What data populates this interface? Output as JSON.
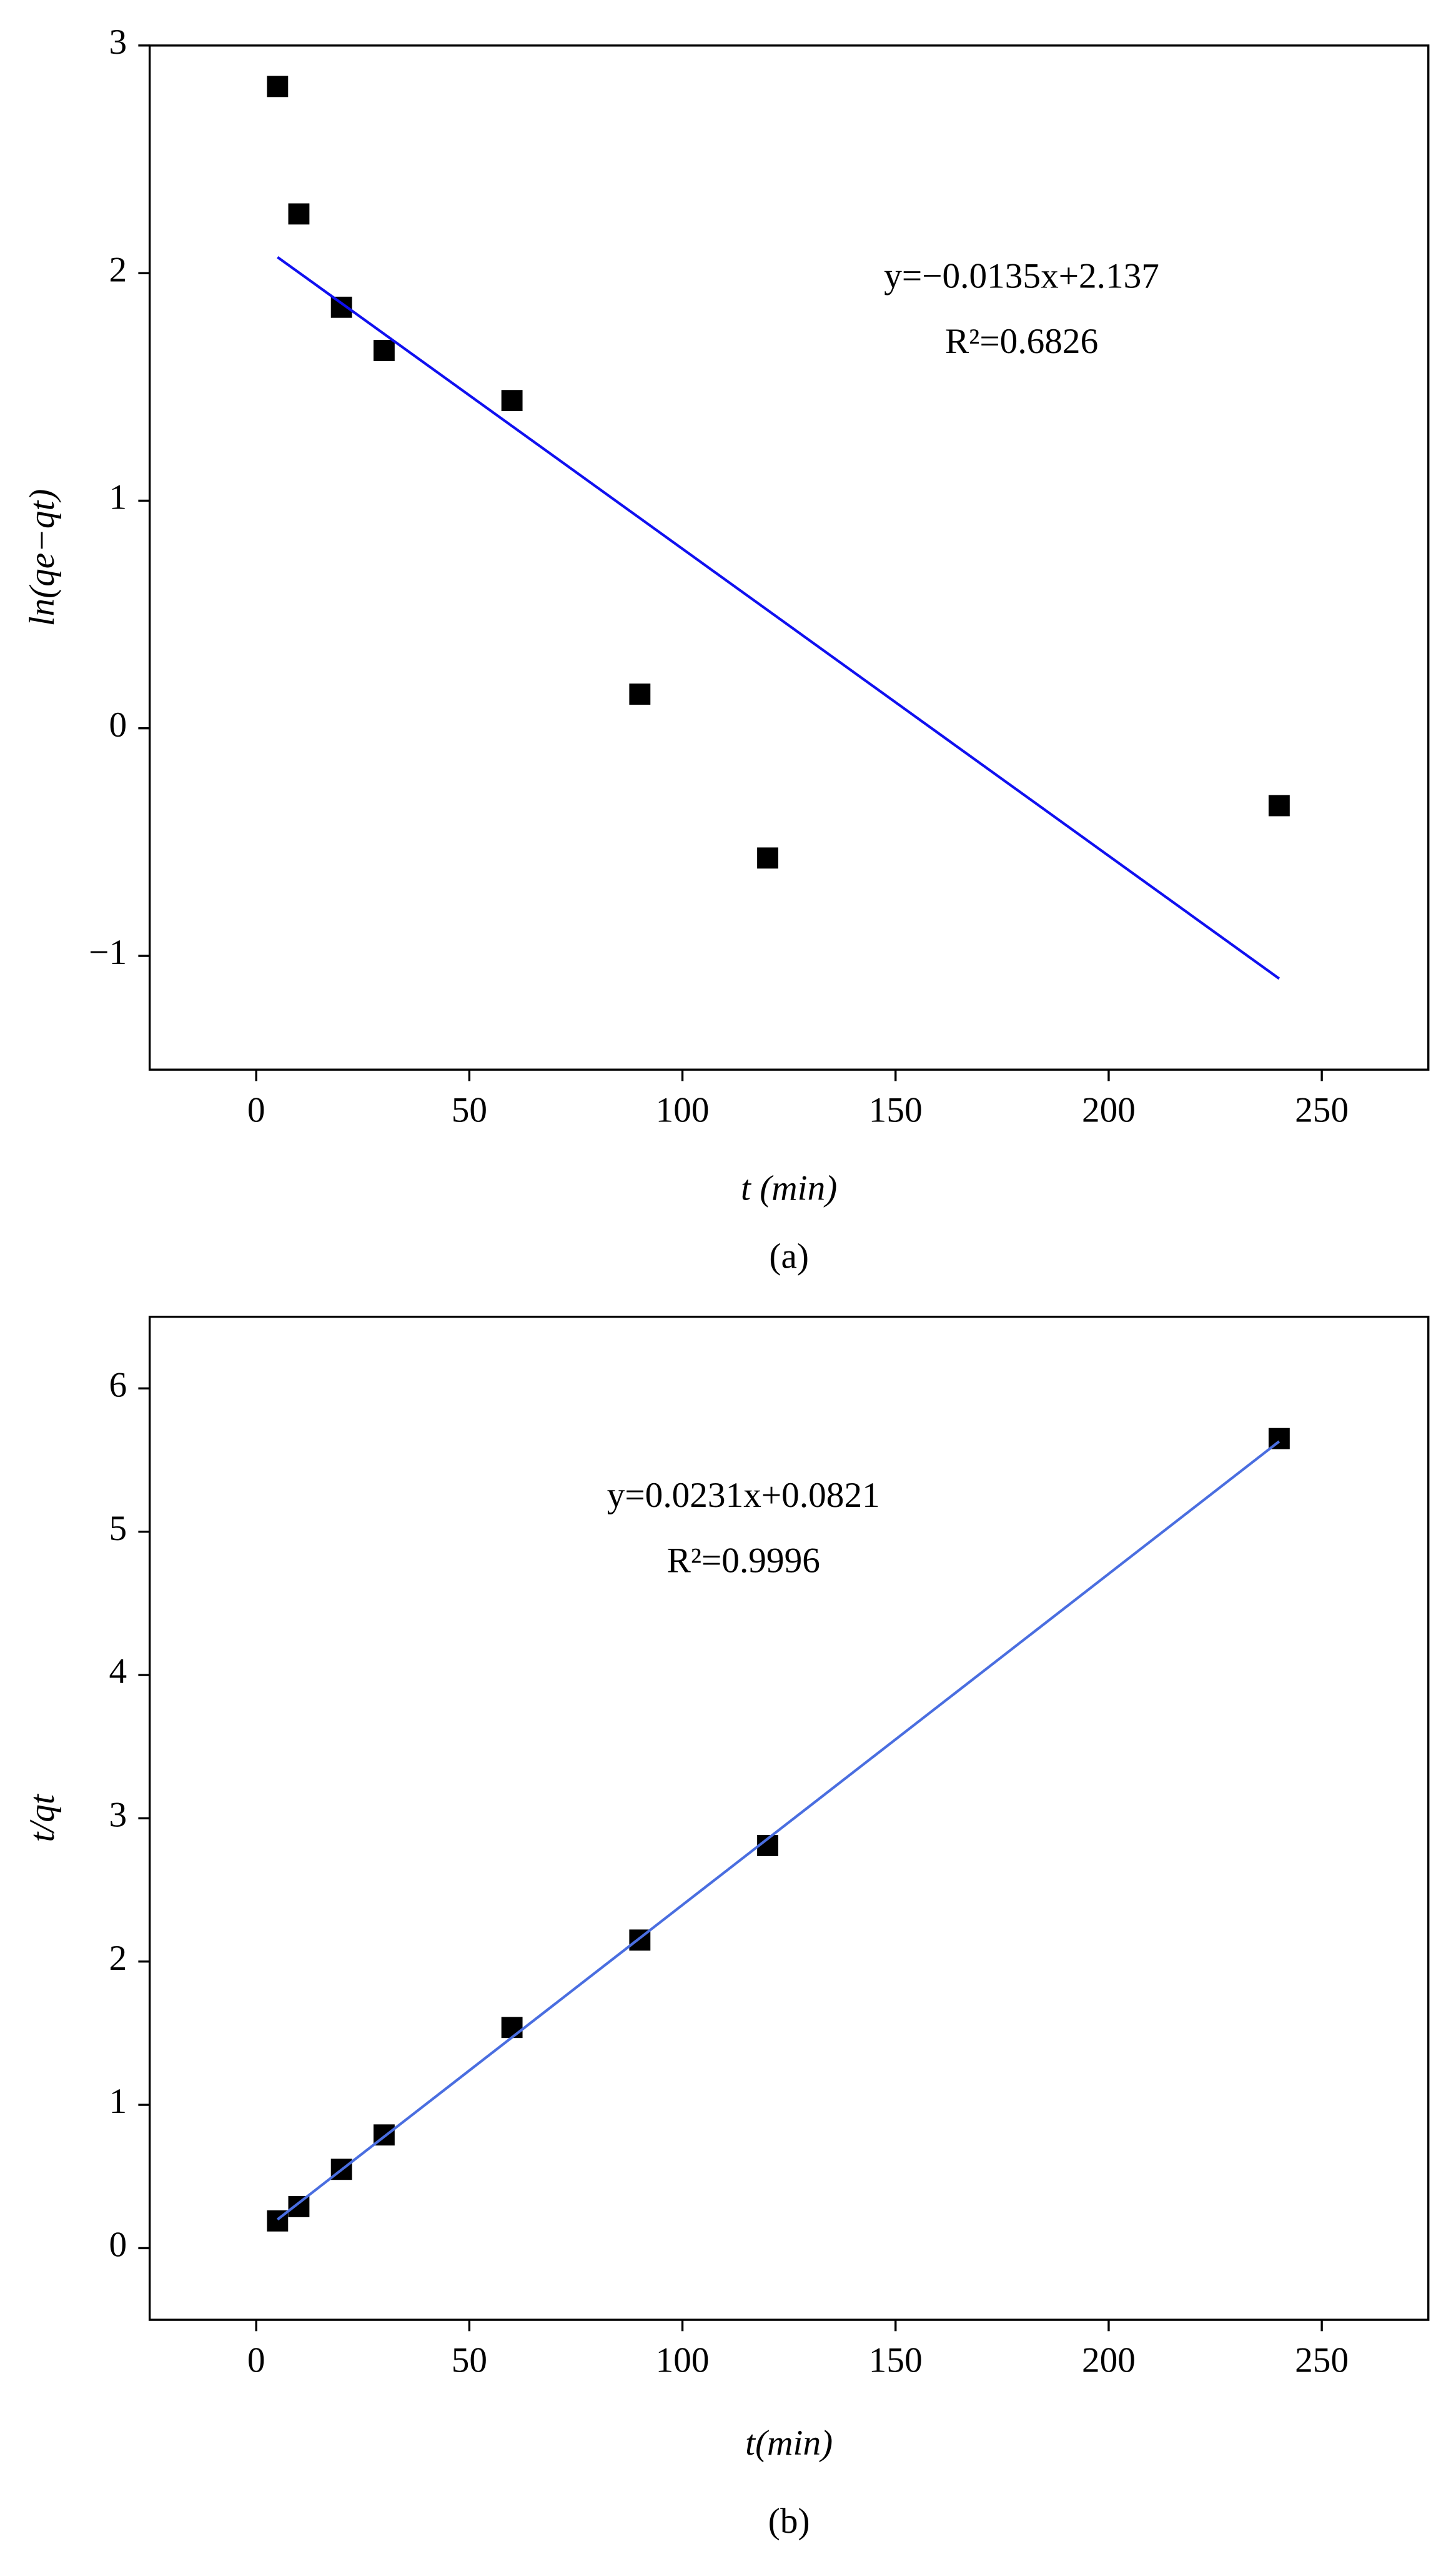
{
  "chart_data": [
    {
      "type": "scatter",
      "caption": "(a)",
      "xlabel": "t (min)",
      "ylabel": "ln(qe−qt)",
      "annotations": [
        "y=−0.0135x+2.137",
        "R²=0.6826"
      ],
      "xlim": [
        -25,
        275
      ],
      "xticks": [
        0,
        50,
        100,
        150,
        200,
        250
      ],
      "ylim": [
        -1.5,
        3
      ],
      "yticks": [
        {
          "value": -1,
          "label": "−1"
        },
        0,
        1,
        2,
        3
      ],
      "series": [
        {
          "type": "scatter",
          "color": "#000000",
          "x": [
            5,
            10,
            20,
            30,
            60,
            90,
            120,
            240
          ],
          "values": [
            2.82,
            2.26,
            1.85,
            1.66,
            1.44,
            0.15,
            -0.57,
            -0.34
          ]
        },
        {
          "type": "line",
          "color": "#1010f0",
          "x": [
            5,
            240
          ],
          "values": [
            2.07,
            -1.1
          ]
        }
      ]
    },
    {
      "type": "scatter",
      "caption": "(b)",
      "xlabel": "t(min)",
      "ylabel": "t/qt",
      "annotations": [
        "y=0.0231x+0.0821",
        "R²=0.9996"
      ],
      "xlim": [
        -25,
        275
      ],
      "xticks": [
        0,
        50,
        100,
        150,
        200,
        250
      ],
      "ylim": [
        -0.5,
        6.5
      ],
      "yticks": [
        0,
        1,
        2,
        3,
        4,
        5,
        6
      ],
      "series": [
        {
          "type": "scatter",
          "color": "#000000",
          "x": [
            5,
            10,
            20,
            30,
            60,
            90,
            120,
            240
          ],
          "values": [
            0.19,
            0.29,
            0.55,
            0.79,
            1.54,
            2.15,
            2.81,
            5.65
          ]
        },
        {
          "type": "line",
          "color": "#4a6ee0",
          "x": [
            5,
            240
          ],
          "values": [
            0.2,
            5.63
          ]
        }
      ]
    }
  ]
}
